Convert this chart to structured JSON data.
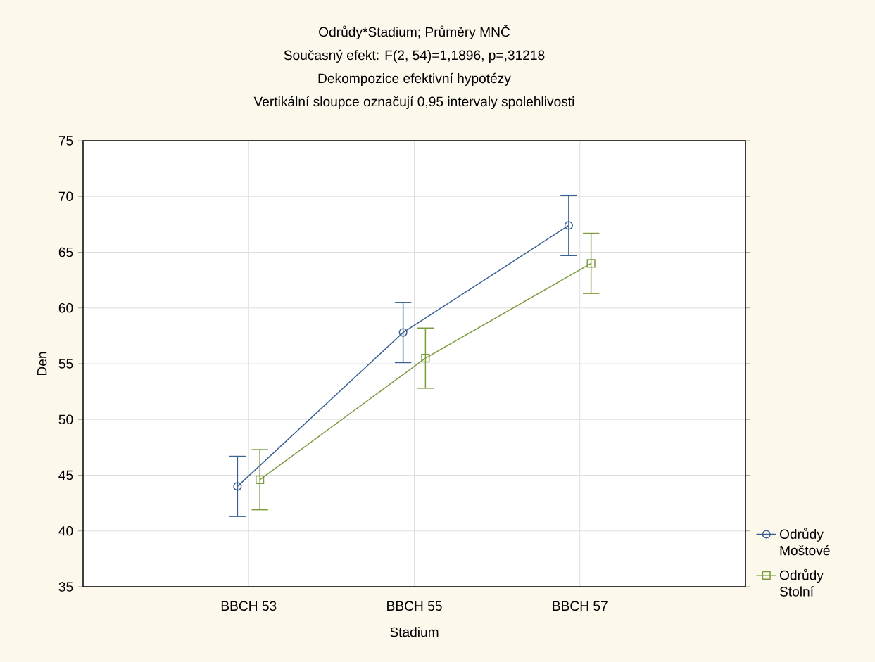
{
  "chart_data": {
    "type": "line",
    "title": "Odrůdy*Stadium; Průměry MNČ",
    "subtitle": "Současný efekt: F(2, 54)=1,1896, p=,31218",
    "annotations": [
      "Dekompozice efektivní hypotézy",
      "Vertikální sloupce označují 0,95 intervaly spolehlivosti"
    ],
    "xlabel": "Stadium",
    "ylabel": "Den",
    "categories": [
      "BBCH 53",
      "BBCH 55",
      "BBCH 57"
    ],
    "ylim": [
      35,
      75
    ],
    "yticks": [
      35,
      40,
      45,
      50,
      55,
      60,
      65,
      70,
      75
    ],
    "grid": true,
    "legend": "bottom right",
    "line_style": "solid",
    "series": [
      {
        "name": "Odrůdy Moštové",
        "color": "#3a6196",
        "marker": "circle",
        "values": [
          44.0,
          57.8,
          67.4
        ],
        "errors": [
          2.7,
          2.7,
          2.7
        ]
      },
      {
        "name": "Odrůdy Stolní",
        "color": "#7a9a3c",
        "marker": "square",
        "values": [
          44.6,
          55.5,
          64.0
        ],
        "errors": [
          2.7,
          2.7,
          2.7
        ]
      }
    ]
  }
}
